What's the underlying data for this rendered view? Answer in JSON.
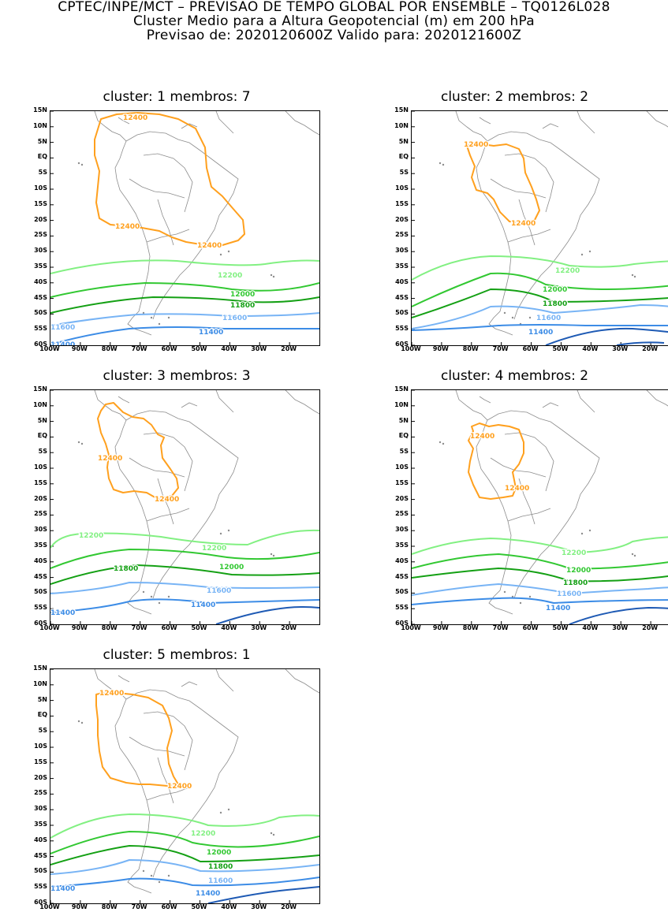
{
  "header": {
    "line1": "CPTEC/INPE/MCT – PREVISAO DE TEMPO GLOBAL POR ENSEMBLE – TQ0126L028",
    "line2": "Cluster Medio para a Altura Geopotencial (m) em 200 hPa",
    "line3": "Previsao de: 2020120600Z    Valido para: 2020121600Z"
  },
  "axes": {
    "y_ticks": [
      "15N",
      "10N",
      "5N",
      "EQ",
      "5S",
      "10S",
      "15S",
      "20S",
      "25S",
      "30S",
      "35S",
      "40S",
      "45S",
      "50S",
      "55S",
      "60S"
    ],
    "x_ticks": [
      "100W",
      "90W",
      "80W",
      "70W",
      "60W",
      "50W",
      "40W",
      "30W",
      "20W"
    ],
    "lon_range": [
      -100,
      -10
    ],
    "lat_range": [
      -60,
      15
    ]
  },
  "colors": {
    "c12400": "#ffa01e",
    "c12200": "#82f082",
    "c12000": "#32c832",
    "c11800": "#14a014",
    "c11600": "#78b4f5",
    "c11400": "#3c8ce6",
    "c11200": "#1e5ab4",
    "coast": "#8c8c8c"
  },
  "panels": [
    {
      "title": "cluster: 1   membros: 7",
      "labels": {
        "l12400a": "12400",
        "l12400b": "12400",
        "l12400c": "12400",
        "l12200": "12200",
        "l12000": "12000",
        "l11800": "11800",
        "l11600a": "11600",
        "l11600b": "11600",
        "l11400a": "11400",
        "l11400b": "11400"
      }
    },
    {
      "title": "cluster: 2   membros: 2",
      "labels": {
        "l12400a": "12400",
        "l12400b": "12400",
        "l12200": "12200",
        "l12000": "12000",
        "l11800": "11800",
        "l11600": "11600",
        "l11400": "11400"
      }
    },
    {
      "title": "cluster: 3   membros: 3",
      "labels": {
        "l12400a": "12400",
        "l12400b": "12400",
        "l12200a": "12200",
        "l12200b": "12200",
        "l12000": "12000",
        "l11800": "11800",
        "l11600": "11600",
        "l11400a": "11400",
        "l11400b": "11400"
      }
    },
    {
      "title": "cluster: 4   membros: 2",
      "labels": {
        "l12400a": "12400",
        "l12400b": "12400",
        "l12200": "12200",
        "l12000": "12000",
        "l11800": "11800",
        "l11600": "11600",
        "l11400": "11400"
      }
    },
    {
      "title": "cluster: 5   membros: 1",
      "labels": {
        "l12400a": "12400",
        "l12400b": "12400",
        "l12200": "12200",
        "l12000": "12000",
        "l11800": "11800",
        "l11600": "11600",
        "l11400a": "11400",
        "l11400b": "11400"
      }
    }
  ]
}
